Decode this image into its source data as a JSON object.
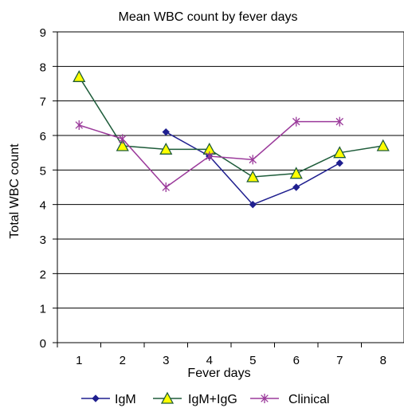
{
  "chart_data": {
    "type": "line",
    "title": "Mean WBC count by fever days",
    "xlabel": "Fever days",
    "ylabel": "Total WBC count",
    "x": [
      1,
      2,
      3,
      4,
      5,
      6,
      7,
      8
    ],
    "x_tick_labels": [
      "1",
      "2",
      "3",
      "4",
      "5",
      "6",
      "7",
      "8"
    ],
    "ylim": [
      0,
      9
    ],
    "y_tick_labels": [
      "0",
      "1",
      "2",
      "3",
      "4",
      "5",
      "6",
      "7",
      "8",
      "9"
    ],
    "grid": "horizontal",
    "legend_position": "bottom",
    "series": [
      {
        "name": "IgM",
        "color": "#1f1f8f",
        "marker": "diamond",
        "points": [
          [
            3,
            6.1
          ],
          [
            4,
            5.4
          ],
          [
            5,
            4.0
          ],
          [
            6,
            4.5
          ],
          [
            7,
            5.2
          ]
        ]
      },
      {
        "name": "IgM+IgG",
        "color": "#1e5c3a",
        "marker": "triangle",
        "marker_fill": "#ffff00",
        "points": [
          [
            1,
            7.7
          ],
          [
            2,
            5.7
          ],
          [
            3,
            5.6
          ],
          [
            4,
            5.6
          ],
          [
            5,
            4.8
          ],
          [
            6,
            4.9
          ],
          [
            7,
            5.5
          ],
          [
            8,
            5.7
          ]
        ]
      },
      {
        "name": "Clinical",
        "color": "#9b3a9b",
        "marker": "asterisk",
        "points": [
          [
            1,
            6.3
          ],
          [
            2,
            5.9
          ],
          [
            3,
            4.5
          ],
          [
            4,
            5.4
          ],
          [
            5,
            5.3
          ],
          [
            6,
            6.4
          ],
          [
            7,
            6.4
          ]
        ]
      }
    ]
  }
}
